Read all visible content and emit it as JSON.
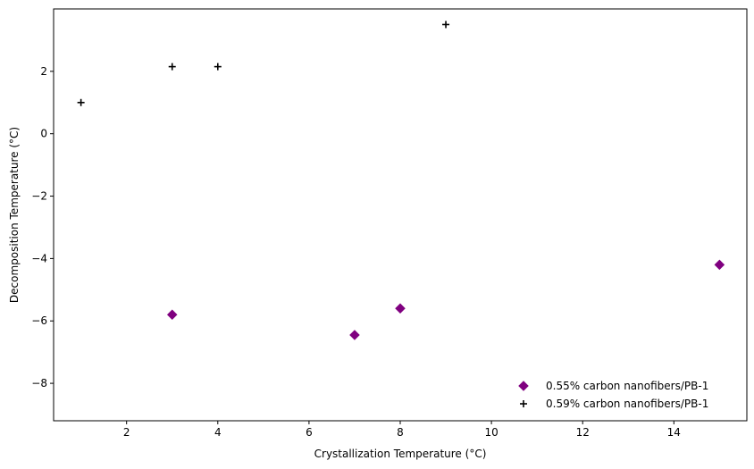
{
  "chart_data": {
    "type": "scatter",
    "xlabel": "Crystallization Temperature (°C)",
    "ylabel": "Decomposition Temperature (°C)",
    "xlim": [
      0.4,
      15.6
    ],
    "ylim": [
      -9.2,
      4.0
    ],
    "x_ticks": [
      2,
      4,
      6,
      8,
      10,
      12,
      14
    ],
    "y_ticks": [
      -8,
      -6,
      -4,
      -2,
      0,
      2
    ],
    "grid": false,
    "legend_position": "lower-right",
    "series": [
      {
        "name": "0.55% carbon nanofibers/PB-1",
        "marker": "diamond",
        "color": "#800080",
        "points": [
          {
            "x": 3,
            "y": -5.8
          },
          {
            "x": 7,
            "y": -6.45
          },
          {
            "x": 8,
            "y": -5.6
          },
          {
            "x": 15,
            "y": -4.2
          }
        ]
      },
      {
        "name": "0.59% carbon nanofibers/PB-1",
        "marker": "plus",
        "color": "#000000",
        "points": [
          {
            "x": 1,
            "y": 1.0
          },
          {
            "x": 3,
            "y": 2.15
          },
          {
            "x": 4,
            "y": 2.15
          },
          {
            "x": 9,
            "y": 3.5
          }
        ]
      }
    ]
  }
}
